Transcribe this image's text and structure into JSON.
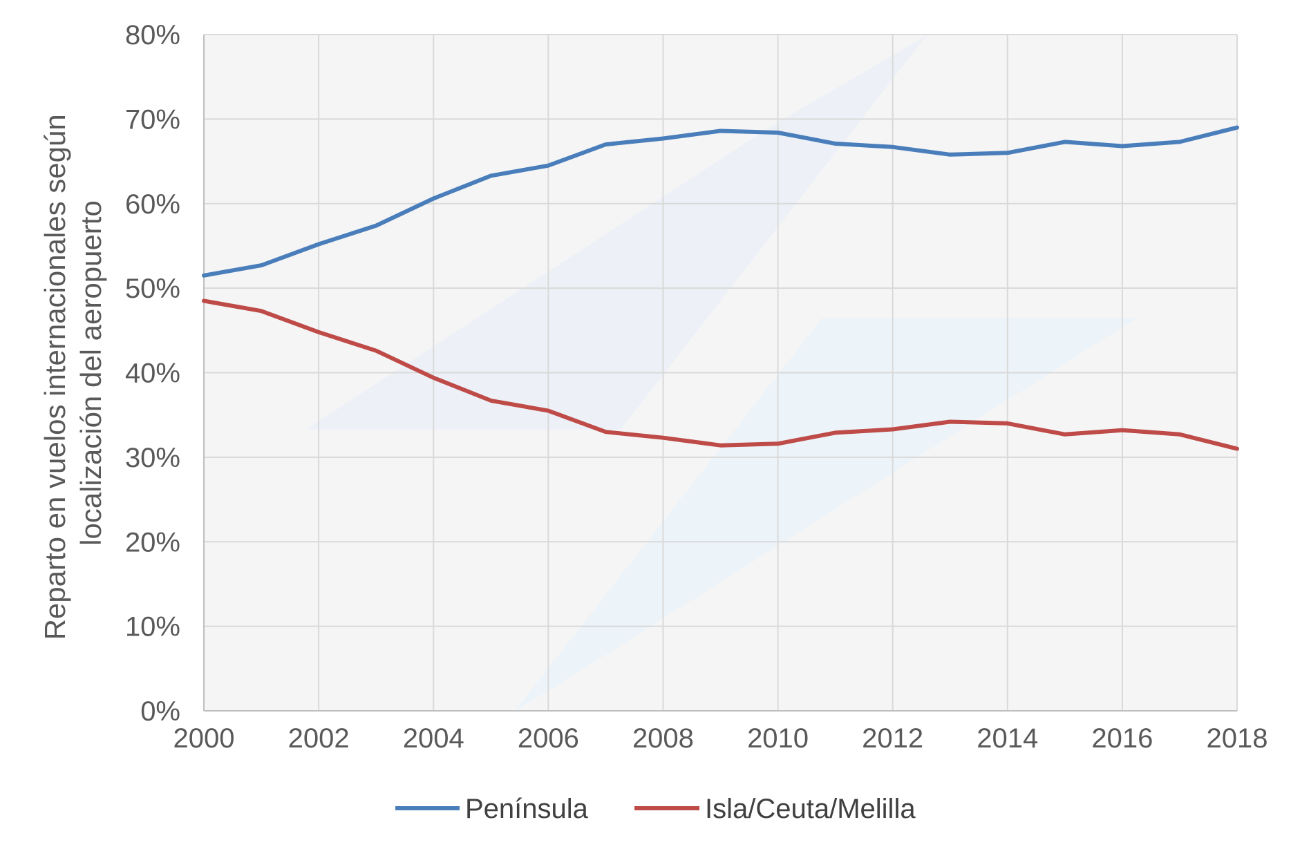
{
  "chart_data": {
    "type": "line",
    "x": [
      2000,
      2001,
      2002,
      2003,
      2004,
      2005,
      2006,
      2007,
      2008,
      2009,
      2010,
      2011,
      2012,
      2013,
      2014,
      2015,
      2016,
      2017,
      2018
    ],
    "x_tick_labels": [
      "2000",
      "2002",
      "2004",
      "2006",
      "2008",
      "2010",
      "2012",
      "2014",
      "2016",
      "2018"
    ],
    "y_tick_labels": [
      "0%",
      "10%",
      "20%",
      "30%",
      "40%",
      "50%",
      "60%",
      "70%",
      "80%"
    ],
    "ylabel_lines": [
      "Reparto en vuelos internacionales según",
      "localización del aeropuerto"
    ],
    "xlabel": "",
    "title": "",
    "xlim": [
      2000,
      2018
    ],
    "ylim": [
      0,
      80
    ],
    "y_unit": "%",
    "grid": true,
    "legend_position": "bottom",
    "series": [
      {
        "name": "Península",
        "color": "#4a7ebb",
        "values": [
          51.5,
          52.7,
          55.2,
          57.4,
          60.6,
          63.3,
          64.5,
          67.0,
          67.7,
          68.6,
          68.4,
          67.1,
          66.7,
          65.8,
          66.0,
          67.3,
          66.8,
          67.3,
          69.0
        ]
      },
      {
        "name": "Isla/Ceuta/Melilla",
        "color": "#be4b48",
        "values": [
          48.5,
          47.3,
          44.8,
          42.6,
          39.4,
          36.7,
          35.5,
          33.0,
          32.3,
          31.4,
          31.6,
          32.9,
          33.3,
          34.2,
          34.0,
          32.7,
          33.2,
          32.7,
          31.0
        ]
      }
    ]
  }
}
